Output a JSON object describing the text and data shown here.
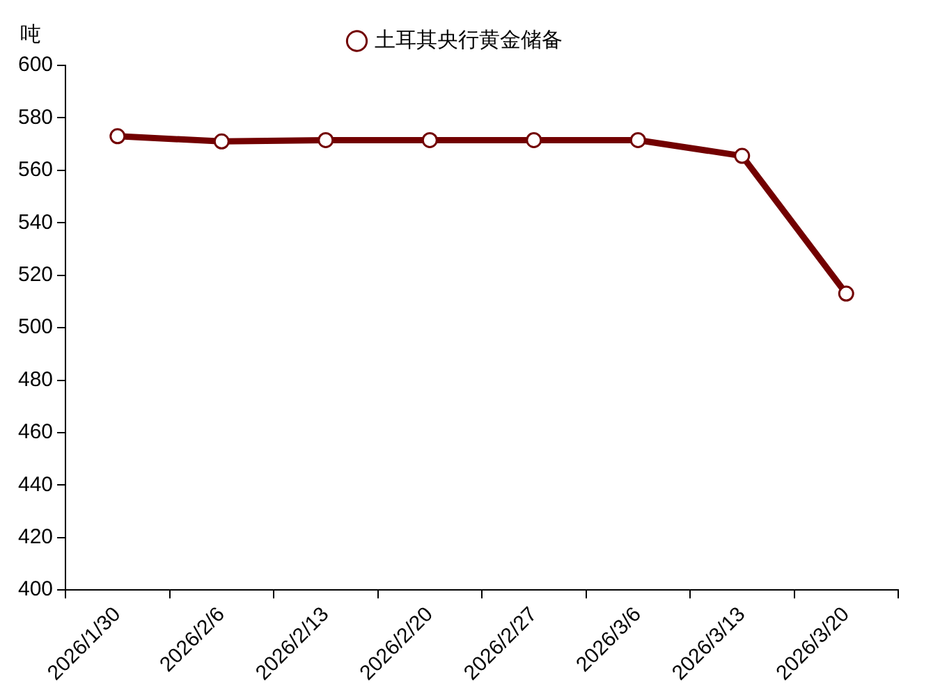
{
  "chart_data": {
    "type": "line",
    "ylabel": "吨",
    "categories": [
      "2026/1/30",
      "2026/2/6",
      "2026/2/13",
      "2026/2/20",
      "2026/2/27",
      "2026/3/6",
      "2026/3/13",
      "2026/3/20"
    ],
    "series": [
      {
        "name": "土耳其央行黄金储备",
        "color": "#720000",
        "values": [
          573,
          571,
          571.5,
          571.5,
          571.5,
          571.5,
          565.5,
          513
        ]
      }
    ],
    "ylim": [
      400,
      600
    ],
    "yticks": [
      400,
      420,
      440,
      460,
      480,
      500,
      520,
      540,
      560,
      580,
      600
    ],
    "grid": false,
    "legend": "top",
    "marker": "circle",
    "line_style": "solid"
  }
}
